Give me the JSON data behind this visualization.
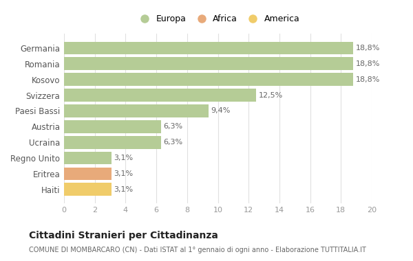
{
  "categories": [
    "Germania",
    "Romania",
    "Kosovo",
    "Svizzera",
    "Paesi Bassi",
    "Austria",
    "Ucraina",
    "Regno Unito",
    "Eritrea",
    "Haiti"
  ],
  "values": [
    18.8,
    18.8,
    18.8,
    12.5,
    9.4,
    6.3,
    6.3,
    3.1,
    3.1,
    3.1
  ],
  "labels": [
    "18,8%",
    "18,8%",
    "18,8%",
    "12,5%",
    "9,4%",
    "6,3%",
    "6,3%",
    "3,1%",
    "3,1%",
    "3,1%"
  ],
  "colors": [
    "#b5cc96",
    "#b5cc96",
    "#b5cc96",
    "#b5cc96",
    "#b5cc96",
    "#b5cc96",
    "#b5cc96",
    "#b5cc96",
    "#e8aa7a",
    "#f0cc6a"
  ],
  "legend_labels": [
    "Europa",
    "Africa",
    "America"
  ],
  "legend_colors": [
    "#b5cc96",
    "#e8aa7a",
    "#f0cc6a"
  ],
  "title": "Cittadini Stranieri per Cittadinanza",
  "subtitle": "COMUNE DI MOMBARCARO (CN) - Dati ISTAT al 1° gennaio di ogni anno - Elaborazione TUTTITALIA.IT",
  "xlim": [
    0,
    20
  ],
  "xticks": [
    0,
    2,
    4,
    6,
    8,
    10,
    12,
    14,
    16,
    18,
    20
  ],
  "background_color": "#ffffff",
  "grid_color": "#e0e0e0"
}
